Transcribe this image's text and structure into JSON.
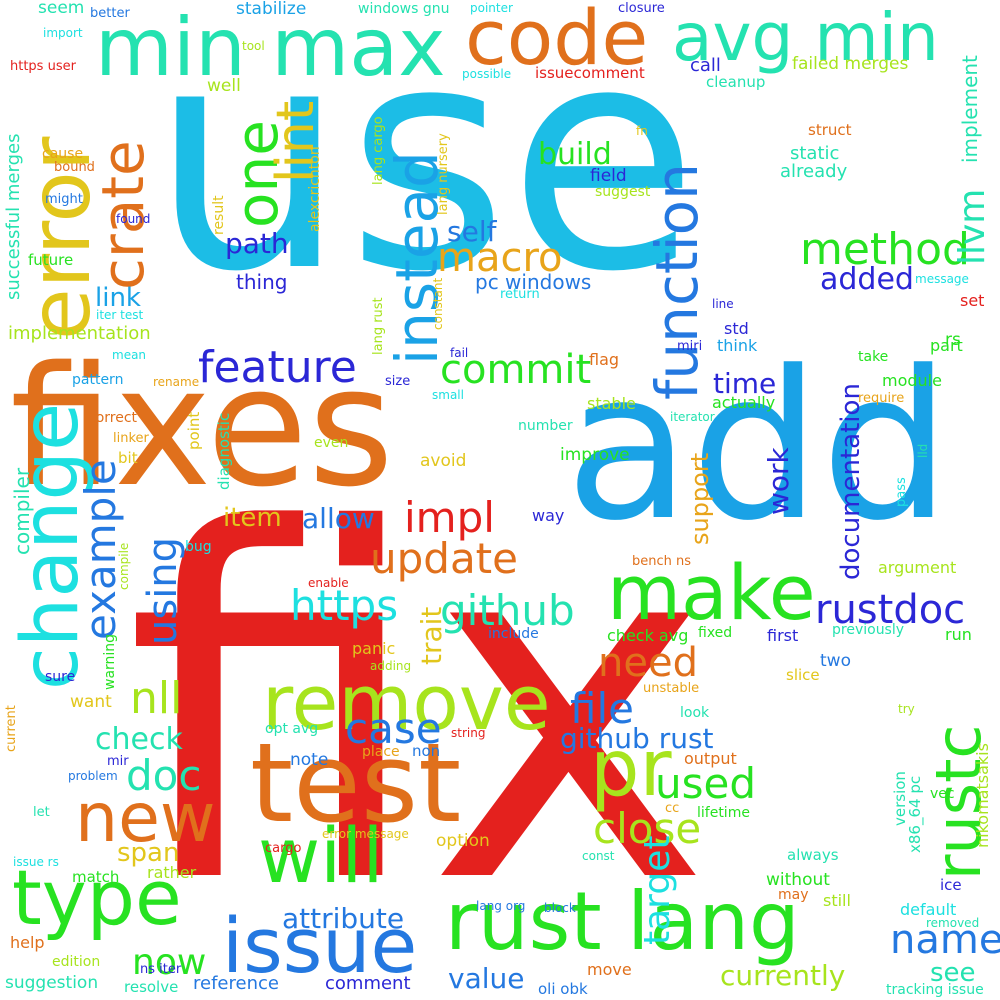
{
  "words": {
    "use": "use",
    "fix": "fix",
    "fixes": "fixes",
    "add": "add",
    "test": "test",
    "error": "error",
    "min_max": "min max",
    "code": "code",
    "avg_min": "avg min",
    "change": "change",
    "type": "type",
    "remove": "remove",
    "pr": "pr",
    "will": "will",
    "rust_lang": "rust lang",
    "issue": "issue",
    "make": "make",
    "new": "new",
    "rustc": "rustc",
    "function": "function",
    "instead": "instead",
    "crate": "crate",
    "one": "one",
    "lint": "lint",
    "method": "method",
    "llvm": "llvm",
    "feature": "feature",
    "commit": "commit",
    "macro": "macro",
    "build": "build",
    "https": "https",
    "github": "github",
    "update": "update",
    "impl": "impl",
    "nll": "nll",
    "example": "example",
    "using": "using",
    "case": "case",
    "doc": "doc",
    "file": "file",
    "need": "need",
    "used": "used",
    "close": "close",
    "github_rust": "github rust",
    "rustdoc": "rustdoc",
    "name": "name",
    "now": "now",
    "target": "target",
    "documentation": "documentation",
    "time": "time",
    "work": "work",
    "support": "support",
    "allow": "allow",
    "attribute": "attribute",
    "value": "value",
    "currently": "currently",
    "path": "path",
    "self": "self",
    "added": "added",
    "check": "check",
    "link": "link",
    "item": "item",
    "span": "span",
    "trait": "trait",
    "see": "see",
    "thing": "thing",
    "pc_windows": "pc windows",
    "implement": "implement",
    "successful_merges": "successful merges",
    "implementation": "implementation",
    "compiler": "compiler",
    "failed_merges": "failed merges",
    "call": "call",
    "cleanup": "cleanup",
    "static": "static",
    "already": "already",
    "field": "field",
    "suggest": "suggest",
    "result": "result",
    "alexcrichton": "alexcrichton",
    "lang_cargo": "lang cargo",
    "lang_nursery": "lang nursery",
    "lang_rust": "lang rust",
    "constant": "constant",
    "struct": "struct",
    "fn": "fn",
    "seem": "seem",
    "better": "better",
    "windows_gnu": "windows gnu",
    "pointer": "pointer",
    "closure": "closure",
    "stabilize": "stabilize",
    "import": "import",
    "tool": "tool",
    "https_user": "https user",
    "possible": "possible",
    "issuecomment": "issuecomment",
    "well": "well",
    "cause": "cause",
    "bound": "bound",
    "might": "might",
    "found": "found",
    "future": "future",
    "iter_test": "iter test",
    "return": "return",
    "message": "message",
    "line": "line",
    "set": "set",
    "rs": "rs",
    "std": "std",
    "think": "think",
    "miri": "miri",
    "part": "part",
    "take": "take",
    "flag": "flag",
    "mean": "mean",
    "fail": "fail",
    "pattern": "pattern",
    "rename": "rename",
    "size": "size",
    "module": "module",
    "actually": "actually",
    "stable": "stable",
    "require": "require",
    "small": "small",
    "iterator": "iterator",
    "point": "point",
    "diagnostic": "diagnostic",
    "correct": "correct",
    "linker": "linker",
    "bit": "bit",
    "even": "even",
    "avoid": "avoid",
    "number": "number",
    "improve": "improve",
    "lld": "lld",
    "pass": "pass",
    "way": "way",
    "bug": "bug",
    "warning": "warning",
    "compile": "compile",
    "enable": "enable",
    "bench_ns": "bench ns",
    "argument": "argument",
    "check_avg": "check avg",
    "fixed": "fixed",
    "first": "first",
    "previously": "previously",
    "run": "run",
    "include": "include",
    "panic": "panic",
    "two": "two",
    "slice": "slice",
    "unstable": "unstable",
    "sure": "sure",
    "want": "want",
    "adding": "adding",
    "look": "look",
    "try": "try",
    "opt_avg": "opt avg",
    "current": "current",
    "mir": "mir",
    "problem": "problem",
    "note": "note",
    "place": "place",
    "non": "non",
    "string": "string",
    "output": "output",
    "cc": "cc",
    "lifetime": "lifetime",
    "version": "version",
    "x86_64_pc": "x86_64 pc",
    "nikomatsakis": "nikomatsakis",
    "vec": "vec",
    "let": "let",
    "error_message": "error message",
    "option": "option",
    "const": "const",
    "always": "always",
    "issue_rs": "issue rs",
    "match": "match",
    "rather": "rather",
    "cargo": "cargo",
    "without": "without",
    "may": "may",
    "still": "still",
    "ice": "ice",
    "default": "default",
    "removed": "removed",
    "lang_org": "lang org",
    "block": "block",
    "help": "help",
    "edition": "edition",
    "ns_iter": "ns iter",
    "suggestion": "suggestion",
    "resolve": "resolve",
    "reference": "reference",
    "comment": "comment",
    "move": "move",
    "oli_obk": "oli obk",
    "tracking_issue": "tracking issue"
  }
}
